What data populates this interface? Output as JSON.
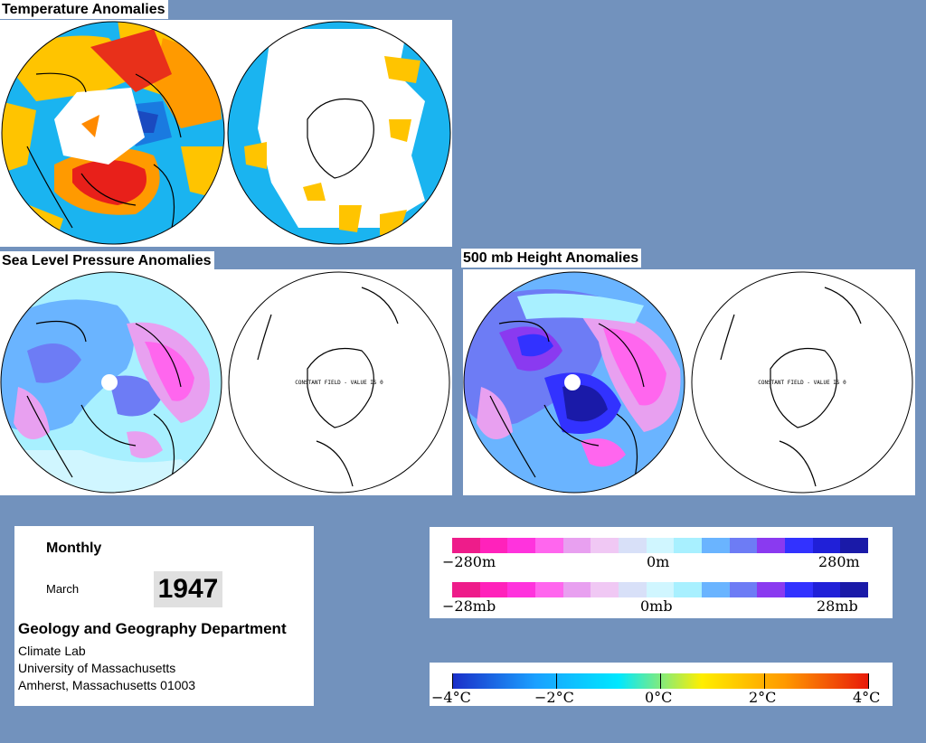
{
  "titles": {
    "temperature": "Temperature Anomalies",
    "slp": "Sea Level Pressure Anomalies",
    "height": "500 mb Height Anomalies"
  },
  "constant_field_text": "CONSTANT FIELD - VALUE IS 0",
  "info": {
    "period": "Monthly",
    "month": "March",
    "year": "1947",
    "department": "Geology and Geography Department",
    "lines": [
      "Climate Lab",
      "University of Massachusetts",
      "Amherst, Massachusetts 01003"
    ]
  },
  "legend_height": {
    "labels": [
      "−280m",
      "0m",
      "280m"
    ],
    "colors": [
      "#ee1c8a",
      "#ff22bb",
      "#ff33dd",
      "#ff66ee",
      "#e8a0f0",
      "#f0c8f4",
      "#d8e0f8",
      "#d0f6ff",
      "#a8f0ff",
      "#6ab4ff",
      "#6d7cf5",
      "#8a3af0",
      "#3232ff",
      "#2020d8",
      "#1a1aa8"
    ]
  },
  "legend_pressure": {
    "labels": [
      "−28mb",
      "0mb",
      "28mb"
    ],
    "colors": [
      "#ee1c8a",
      "#ff22bb",
      "#ff33dd",
      "#ff66ee",
      "#e8a0f0",
      "#f0c8f4",
      "#d8e0f8",
      "#d0f6ff",
      "#a8f0ff",
      "#6ab4ff",
      "#6d7cf5",
      "#8a3af0",
      "#3232ff",
      "#2020d8",
      "#1a1aa8"
    ]
  },
  "legend_temperature": {
    "labels": [
      "−4°C",
      "−2°C",
      "0°C",
      "2°C",
      "4°C"
    ],
    "gradient": [
      "#1a2ec8",
      "#1aa0ff",
      "#00e8ff",
      "#ffee00",
      "#ff9900",
      "#e81a0a"
    ]
  }
}
